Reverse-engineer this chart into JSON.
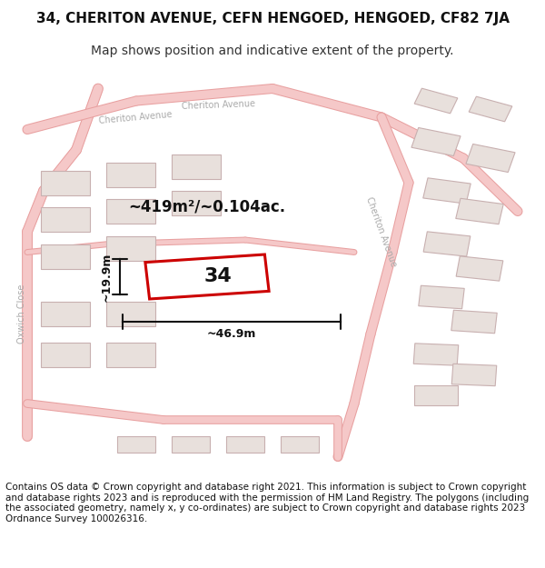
{
  "title": "34, CHERITON AVENUE, CEFN HENGOED, HENGOED, CF82 7JA",
  "subtitle": "Map shows position and indicative extent of the property.",
  "footer": "Contains OS data © Crown copyright and database right 2021. This information is subject to Crown copyright and database rights 2023 and is reproduced with the permission of HM Land Registry. The polygons (including the associated geometry, namely x, y co-ordinates) are subject to Crown copyright and database rights 2023 Ordnance Survey 100026316.",
  "bg_color": "#ffffff",
  "map_bg": "#f5f0ee",
  "road_color": "#f5c8c8",
  "road_outline": "#e8a0a0",
  "building_fill": "#e8e0dc",
  "building_outline": "#c8b0b0",
  "subject_fill": "none",
  "subject_outline": "#cc0000",
  "dim_color": "#111111",
  "street_label_color": "#aaaaaa",
  "area_text": "~419m²/~0.104ac.",
  "number_label": "34",
  "dim_width": "~46.9m",
  "dim_height": "~19.9m",
  "title_fontsize": 11,
  "subtitle_fontsize": 10,
  "footer_fontsize": 7.5
}
